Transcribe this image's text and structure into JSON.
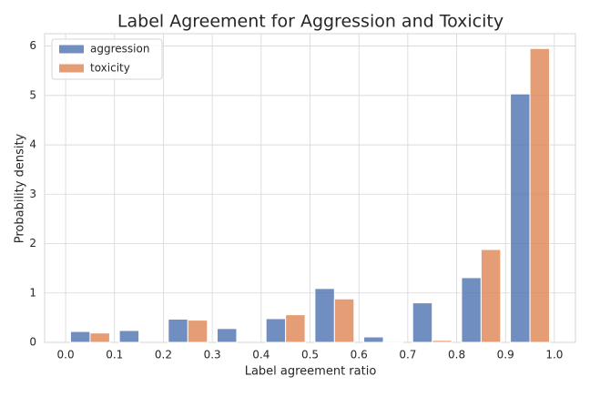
{
  "chart_data": {
    "type": "histogram",
    "title": "Label Agreement for Aggression and Toxicity",
    "x_label": "Label agreement ratio",
    "y_label": "Probability density",
    "bins": [
      0,
      0.1,
      0.2,
      0.3,
      0.4,
      0.5,
      0.6,
      0.7,
      0.8,
      0.9,
      1.0
    ],
    "series": [
      {
        "name": "aggression",
        "color": "#4c72b0",
        "values": [
          0.22,
          0.24,
          0.47,
          0.28,
          0.48,
          1.09,
          0.11,
          0.8,
          1.31,
          5.03
        ]
      },
      {
        "name": "toxicity",
        "color": "#dd8452",
        "values": [
          0.19,
          0,
          0.45,
          0,
          0.56,
          0.88,
          0.02,
          0.04,
          1.88,
          5.95
        ]
      }
    ],
    "xlim": [
      -0.043,
      1.043
    ],
    "ylim": [
      0,
      6.25
    ],
    "xticks": [
      {
        "value": 0,
        "label": "0.0"
      },
      0.1,
      0.2,
      0.3,
      0.4,
      0.5,
      0.6,
      0.7,
      0.8,
      0.9,
      {
        "value": 1.0,
        "label": "1.0"
      }
    ],
    "yticks": [
      0,
      1,
      2,
      3,
      4,
      5,
      6
    ],
    "grid": true,
    "legend": "upper left"
  }
}
